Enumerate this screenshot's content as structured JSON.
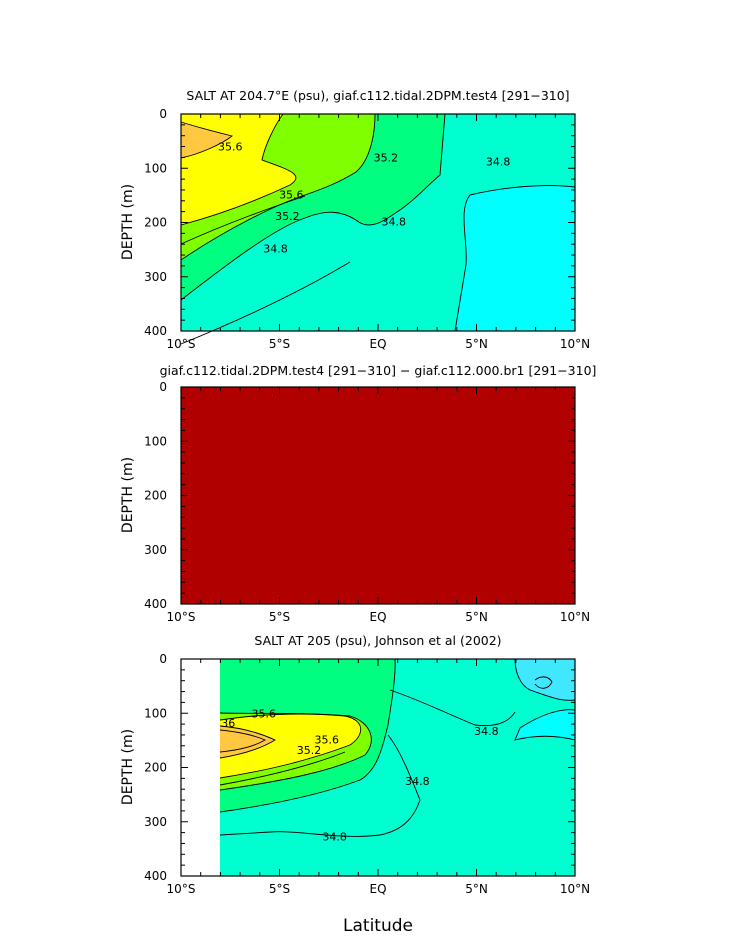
{
  "chart_data": [
    {
      "type": "contour",
      "title": "SALT AT 204.7°E (psu), giaf.c112.tidal.2DPM.test4 [291−310]",
      "ylabel": "DEPTH (m)",
      "xlim": [
        -10,
        10
      ],
      "ylim": [
        400,
        0
      ],
      "x_ticks": [
        "10°S",
        "5°S",
        "EQ",
        "5°N",
        "10°N"
      ],
      "y_ticks": [
        "0",
        "100",
        "200",
        "300",
        "400"
      ],
      "fill_colors": [
        "#00ffff",
        "#00ffd0",
        "#00ff80",
        "#80ff00",
        "#ffff00",
        "#ffc840"
      ],
      "contour_labels": [
        {
          "text": "35.6",
          "x": -7.5,
          "y": 60
        },
        {
          "text": "35.2",
          "x": 0.4,
          "y": 80
        },
        {
          "text": "34.8",
          "x": 6.1,
          "y": 88
        },
        {
          "text": "35.6",
          "x": -4.4,
          "y": 148
        },
        {
          "text": "35.2",
          "x": -4.6,
          "y": 188
        },
        {
          "text": "34.8",
          "x": -5.2,
          "y": 248
        },
        {
          "text": "34.8",
          "x": 0.8,
          "y": 198
        }
      ]
    },
    {
      "type": "contour",
      "title": "giaf.c112.tidal.2DPM.test4 [291−310] − giaf.c112.000.br1 [291−310]",
      "ylabel": "DEPTH (m)",
      "xlim": [
        -10,
        10
      ],
      "ylim": [
        400,
        0
      ],
      "x_ticks": [
        "10°S",
        "5°S",
        "EQ",
        "5°N",
        "10°N"
      ],
      "y_ticks": [
        "0",
        "100",
        "200",
        "300",
        "400"
      ],
      "fill_colors": [
        "#b00000"
      ]
    },
    {
      "type": "contour",
      "title": "SALT AT 205 (psu), Johnson et al (2002)",
      "ylabel": "DEPTH (m)",
      "xlabel": "Latitude",
      "xlim": [
        -10,
        10
      ],
      "ylim": [
        400,
        0
      ],
      "x_ticks": [
        "10°S",
        "5°S",
        "EQ",
        "5°N",
        "10°N"
      ],
      "y_ticks": [
        "0",
        "100",
        "200",
        "300",
        "400"
      ],
      "fill_colors": [
        "#00ffff",
        "#40e8ff",
        "#00ffd0",
        "#00ff80",
        "#80ff00",
        "#ffff00",
        "#ffc840"
      ],
      "contour_labels": [
        {
          "text": "35.6",
          "x": -5.8,
          "y": 100
        },
        {
          "text": "36",
          "x": -7.6,
          "y": 118
        },
        {
          "text": "35.6",
          "x": -2.6,
          "y": 148
        },
        {
          "text": "35.2",
          "x": -3.5,
          "y": 168
        },
        {
          "text": "34.8",
          "x": 5.5,
          "y": 133
        },
        {
          "text": "34.8",
          "x": 2.0,
          "y": 225
        },
        {
          "text": "34.8",
          "x": -2.2,
          "y": 327
        }
      ]
    }
  ]
}
